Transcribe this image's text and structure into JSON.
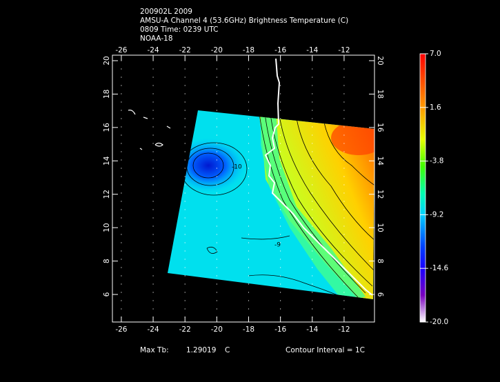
{
  "header": {
    "lines": [
      "200902L 2009",
      "AMSU-A Channel 4 (53.6GHz) Brightness Temperature (C)",
      "0809 Time: 0239 UTC",
      "NOAA-18"
    ]
  },
  "map": {
    "xlim": [
      -26.56,
      -10.09
    ],
    "ylim": [
      4.35,
      20.33
    ],
    "xticks": [
      -26,
      -24,
      -22,
      -20,
      -18,
      -16,
      -14,
      -12
    ],
    "yticks": [
      6,
      8,
      10,
      12,
      14,
      16,
      18,
      20
    ],
    "contour_labels": [
      "-9",
      "-10"
    ]
  },
  "colorbar": {
    "clim": [
      -20,
      7
    ],
    "ticks": [
      {
        "value": 7,
        "label": "7.0"
      },
      1.6,
      -3.8,
      -9.2,
      -14.6,
      {
        "value": -20,
        "label": "-20.0"
      }
    ]
  },
  "footer": {
    "max_label": "Max Tb:",
    "max_value": "1.29019",
    "unit": "C",
    "contour_interval": "Contour Interval = 1C"
  }
}
